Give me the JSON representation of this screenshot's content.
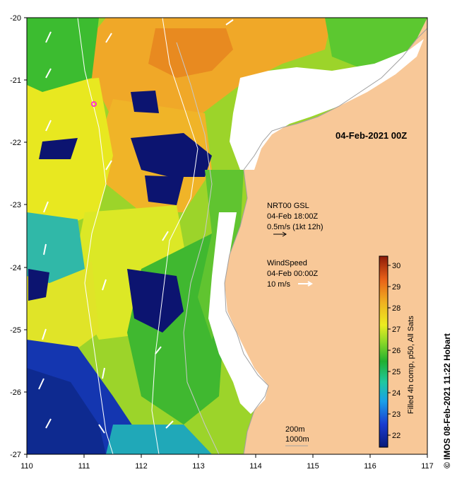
{
  "map": {
    "title": "04-Feb-2021 00Z",
    "y_ticks": [
      "-20",
      "-21",
      "-22",
      "-23",
      "-24",
      "-25",
      "-26",
      "-27"
    ],
    "x_ticks": [
      "110",
      "111",
      "112",
      "113",
      "114",
      "115",
      "116",
      "117"
    ],
    "lat_range": [
      -27,
      -20
    ],
    "lon_range": [
      110,
      117
    ]
  },
  "legends": {
    "current": {
      "line1": "NRT00 GSL",
      "line2": "04-Feb 18:00Z",
      "line3": "0.5m/s (1kt 12h)"
    },
    "wind": {
      "line1": "WindSpeed",
      "line2": "04-Feb 00:00Z",
      "line3": "10 m/s"
    },
    "depth": {
      "line1": "200m",
      "line2": "1000m"
    }
  },
  "colorbar": {
    "ticks": [
      "30",
      "29",
      "28",
      "27",
      "26",
      "25",
      "24",
      "23",
      "22"
    ],
    "label": "Filled 4h comp, p50, All Sats",
    "range": [
      21.5,
      30.5
    ],
    "colors": [
      "#0a1a78",
      "#1a3cd0",
      "#1aa0e8",
      "#20c8a0",
      "#22b030",
      "#8cd828",
      "#ecec20",
      "#f0b020",
      "#e86018",
      "#8c1a08"
    ]
  },
  "credit": "© IMOS 08-Feb-2021 11:22 Hobart",
  "colors": {
    "land": "#f8c898",
    "cloud": "#ffffff",
    "coast": "#a0a0a0"
  }
}
